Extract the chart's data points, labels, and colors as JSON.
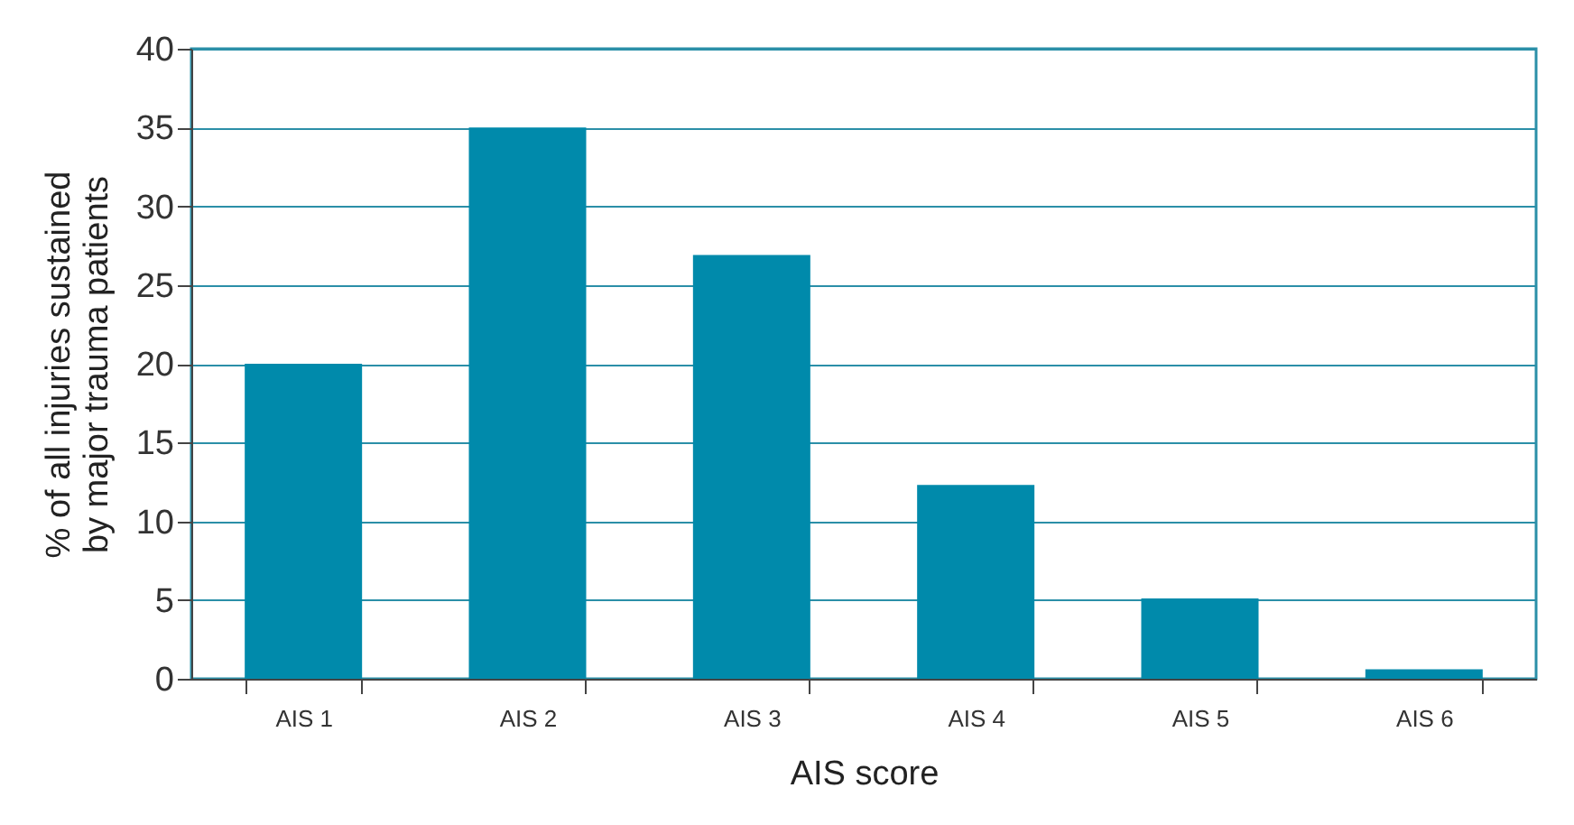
{
  "chart_data": {
    "type": "bar",
    "xlabel": "AIS score",
    "ylabel": "% of all injuries sustained by major trauma patients",
    "categories": [
      "AIS 1",
      "AIS 2",
      "AIS 3",
      "AIS 4",
      "AIS 5",
      "AIS 6"
    ],
    "values": [
      20,
      35,
      26.9,
      12.3,
      5.1,
      0.6
    ],
    "color": "#008aab",
    "ylim": [
      0,
      40
    ],
    "yticks": [
      0,
      5,
      10,
      15,
      20,
      25,
      30,
      35,
      40
    ],
    "grid": "y"
  }
}
